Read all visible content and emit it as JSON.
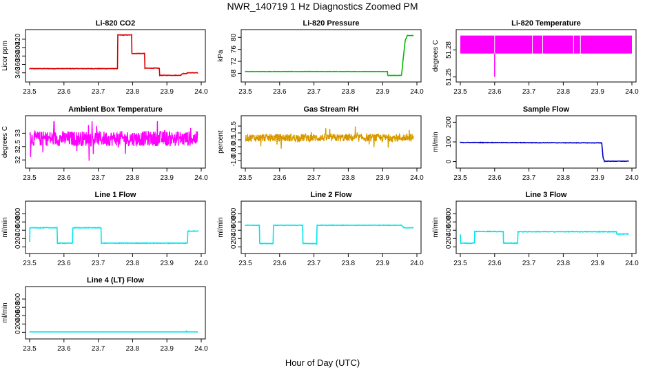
{
  "figure": {
    "title": "NWR_140719  1 Hz Diagnostics Zoomed PM",
    "xlabel": "Hour of Day (UTC)"
  },
  "chart_data": [
    {
      "type": "line",
      "title": "Li-820 CO2",
      "ylabel": "Licor ppm",
      "color": "#dd0000",
      "xlim": [
        23.5,
        24.0
      ],
      "ylim": [
        328,
        433
      ],
      "xticks": [
        "23.5",
        "23.6",
        "23.7",
        "23.8",
        "23.9",
        "24.0"
      ],
      "yticks": [
        340,
        360,
        380,
        400,
        420
      ],
      "noise": 0.6,
      "series": [
        {
          "x": [
            23.5,
            23.756,
            23.757,
            23.797,
            23.798,
            23.835,
            23.836,
            23.878,
            23.879,
            23.94,
            23.945,
            23.956,
            23.957,
            23.96,
            23.99
          ],
          "values": [
            350,
            350,
            430,
            430,
            386,
            386,
            351,
            351,
            334,
            334,
            338,
            338,
            338,
            340,
            340
          ]
        }
      ]
    },
    {
      "type": "line",
      "title": "Li-820 Pressure",
      "ylabel": "kPa",
      "color": "#00bb00",
      "xlim": [
        23.5,
        24.0
      ],
      "ylim": [
        66.5,
        81.2
      ],
      "xticks": [
        "23.5",
        "23.6",
        "23.7",
        "23.8",
        "23.9",
        "24.0"
      ],
      "yticks": [
        68,
        72,
        76,
        80
      ],
      "noise": 0.05,
      "series": [
        {
          "x": [
            23.5,
            23.914,
            23.915,
            23.955,
            23.962,
            23.966,
            23.972,
            23.99
          ],
          "values": [
            68.6,
            68.6,
            67.3,
            67.3,
            75,
            79,
            80.6,
            80.6
          ]
        }
      ]
    },
    {
      "type": "line",
      "title": "Li-820 Temperature",
      "ylabel": "degrees C",
      "color": "#ff00ff",
      "xlim": [
        23.5,
        24.0
      ],
      "ylim": [
        51.249,
        51.298
      ],
      "xticks": [
        "23.5",
        "23.6",
        "23.7",
        "23.8",
        "23.9",
        "24.0"
      ],
      "yticks": [
        "51.25",
        "51.28"
      ],
      "band": [
        51.276,
        51.296
      ],
      "spike": {
        "x": 23.6,
        "value": 51.25
      },
      "gaps": [
        23.6,
        23.71,
        23.74,
        23.83,
        23.85
      ]
    },
    {
      "type": "line",
      "title": "Ambient Box Temperature",
      "ylabel": "degrees C",
      "color": "#ff00ff",
      "xlim": [
        23.5,
        24.0
      ],
      "ylim": [
        31.85,
        33.5
      ],
      "xticks": [
        "23.5",
        "23.6",
        "23.7",
        "23.8",
        "23.9",
        "24.0"
      ],
      "yticks": [
        32.0,
        32.5,
        33.0
      ],
      "center": 32.8,
      "spread": 0.28
    },
    {
      "type": "line",
      "title": "Gas Stream RH",
      "ylabel": "percent",
      "color": "#ddaa00",
      "xlim": [
        23.5,
        24.0
      ],
      "ylim": [
        -1.25,
        1.95
      ],
      "xticks": [
        "23.5",
        "23.6",
        "23.7",
        "23.8",
        "23.9",
        "24.0"
      ],
      "yticks": [
        "-1.0",
        "-0.5",
        "0.0",
        "0.5",
        "1.0",
        "1.5"
      ],
      "center": 0.65,
      "spread": 0.28
    },
    {
      "type": "line",
      "title": "Sample Flow",
      "ylabel": "ml/min",
      "color": "#0000cc",
      "xlim": [
        23.5,
        24.0
      ],
      "ylim": [
        -12,
        212
      ],
      "xticks": [
        "23.5",
        "23.6",
        "23.7",
        "23.8",
        "23.9",
        "24.0"
      ],
      "yticks": [
        0,
        100,
        200
      ],
      "noise": 1.2,
      "series": [
        {
          "x": [
            23.5,
            23.912,
            23.916,
            23.92,
            23.93,
            23.99
          ],
          "values": [
            97,
            95,
            20,
            2,
            2,
            2
          ]
        }
      ]
    },
    {
      "type": "line",
      "title": "Line 1 Flow",
      "ylabel": "ml/min",
      "color": "#00e5ee",
      "xlim": [
        23.5,
        24.0
      ],
      "ylim": [
        -60,
        1000
      ],
      "xticks": [
        "23.5",
        "23.6",
        "23.7",
        "23.8",
        "23.9",
        "24.0"
      ],
      "yticks": [
        0,
        200,
        400,
        600,
        800
      ],
      "noise": 7,
      "series": [
        {
          "x": [
            23.5,
            23.501,
            23.58,
            23.581,
            23.625,
            23.626,
            23.708,
            23.709,
            23.96,
            23.961,
            23.99
          ],
          "values": [
            120,
            460,
            460,
            90,
            90,
            460,
            460,
            90,
            90,
            380,
            380
          ]
        }
      ]
    },
    {
      "type": "line",
      "title": "Line 2 Flow",
      "ylabel": "ml/min",
      "color": "#00e5ee",
      "xlim": [
        23.5,
        24.0
      ],
      "ylim": [
        -60,
        1000
      ],
      "xticks": [
        "23.5",
        "23.6",
        "23.7",
        "23.8",
        "23.9",
        "24.0"
      ],
      "yticks": [
        0,
        200,
        400,
        600,
        800
      ],
      "noise": 5,
      "series": [
        {
          "x": [
            23.5,
            23.541,
            23.542,
            23.581,
            23.582,
            23.667,
            23.668,
            23.708,
            23.709,
            23.955,
            23.962,
            23.99
          ],
          "values": [
            520,
            520,
            80,
            80,
            520,
            520,
            80,
            80,
            520,
            520,
            460,
            460
          ]
        }
      ]
    },
    {
      "type": "line",
      "title": "Line 3 Flow",
      "ylabel": "ml/min",
      "color": "#00e5ee",
      "xlim": [
        23.5,
        24.0
      ],
      "ylim": [
        -60,
        1000
      ],
      "xticks": [
        "23.5",
        "23.6",
        "23.7",
        "23.8",
        "23.9",
        "24.0"
      ],
      "yticks": [
        0,
        200,
        400,
        600,
        800
      ],
      "noise": 8,
      "series": [
        {
          "x": [
            23.5,
            23.501,
            23.541,
            23.542,
            23.625,
            23.626,
            23.667,
            23.668,
            23.955,
            23.956,
            23.99
          ],
          "values": [
            300,
            90,
            90,
            370,
            370,
            90,
            90,
            365,
            365,
            310,
            310
          ]
        }
      ]
    },
    {
      "type": "line",
      "title": "Line 4 (LT) Flow",
      "ylabel": "ml/min",
      "color": "#00e5ee",
      "xlim": [
        23.5,
        24.0
      ],
      "ylim": [
        -60,
        1000
      ],
      "xticks": [
        "23.5",
        "23.6",
        "23.7",
        "23.8",
        "23.9",
        "24.0"
      ],
      "yticks": [
        0,
        200,
        400,
        600,
        800
      ],
      "noise": 1,
      "series": [
        {
          "x": [
            23.5,
            23.955,
            23.957,
            23.958,
            23.99
          ],
          "values": [
            10,
            10,
            30,
            10,
            10
          ]
        }
      ]
    }
  ]
}
